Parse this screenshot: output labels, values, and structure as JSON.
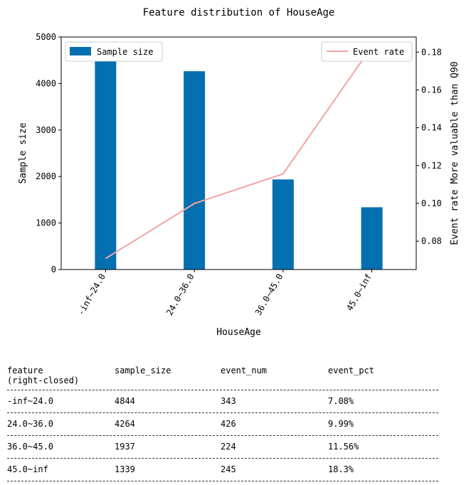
{
  "chart_data": {
    "type": "bar+line",
    "title": "Feature distribution of HouseAge",
    "xlabel": "HouseAge",
    "ylabel": "Sample size",
    "y2label": "Event rate More valuable than Q90",
    "categories": [
      "-inf~24.0",
      "24.0~36.0",
      "36.0~45.0",
      "45.0~inf"
    ],
    "ylim": [
      0,
      5000
    ],
    "y2lim": [
      0.065,
      0.188
    ],
    "yticks": [
      0,
      1000,
      2000,
      3000,
      4000,
      5000
    ],
    "y2ticks": [
      0.08,
      0.1,
      0.12,
      0.14,
      0.16,
      0.18
    ],
    "series": [
      {
        "name": "Sample size",
        "kind": "bar",
        "axis": "left",
        "color": "#0570b0",
        "values": [
          4844,
          4264,
          1937,
          1339
        ]
      },
      {
        "name": "Event rate",
        "kind": "line",
        "axis": "right",
        "color": "#f4a3a3",
        "values": [
          0.0708,
          0.0999,
          0.1156,
          0.183
        ]
      }
    ],
    "legend": {
      "bar": "upper left",
      "line": "upper right"
    },
    "grid": false
  },
  "table": {
    "headers": [
      "feature\n(right-closed)",
      "sample_size",
      "event_num",
      "event_pct"
    ],
    "rows": [
      [
        "-inf~24.0",
        "4844",
        "343",
        "7.08%"
      ],
      [
        "24.0~36.0",
        "4264",
        "426",
        "9.99%"
      ],
      [
        "36.0~45.0",
        "1937",
        "224",
        "11.56%"
      ],
      [
        "45.0~inf",
        "1339",
        "245",
        "18.3%"
      ]
    ]
  }
}
